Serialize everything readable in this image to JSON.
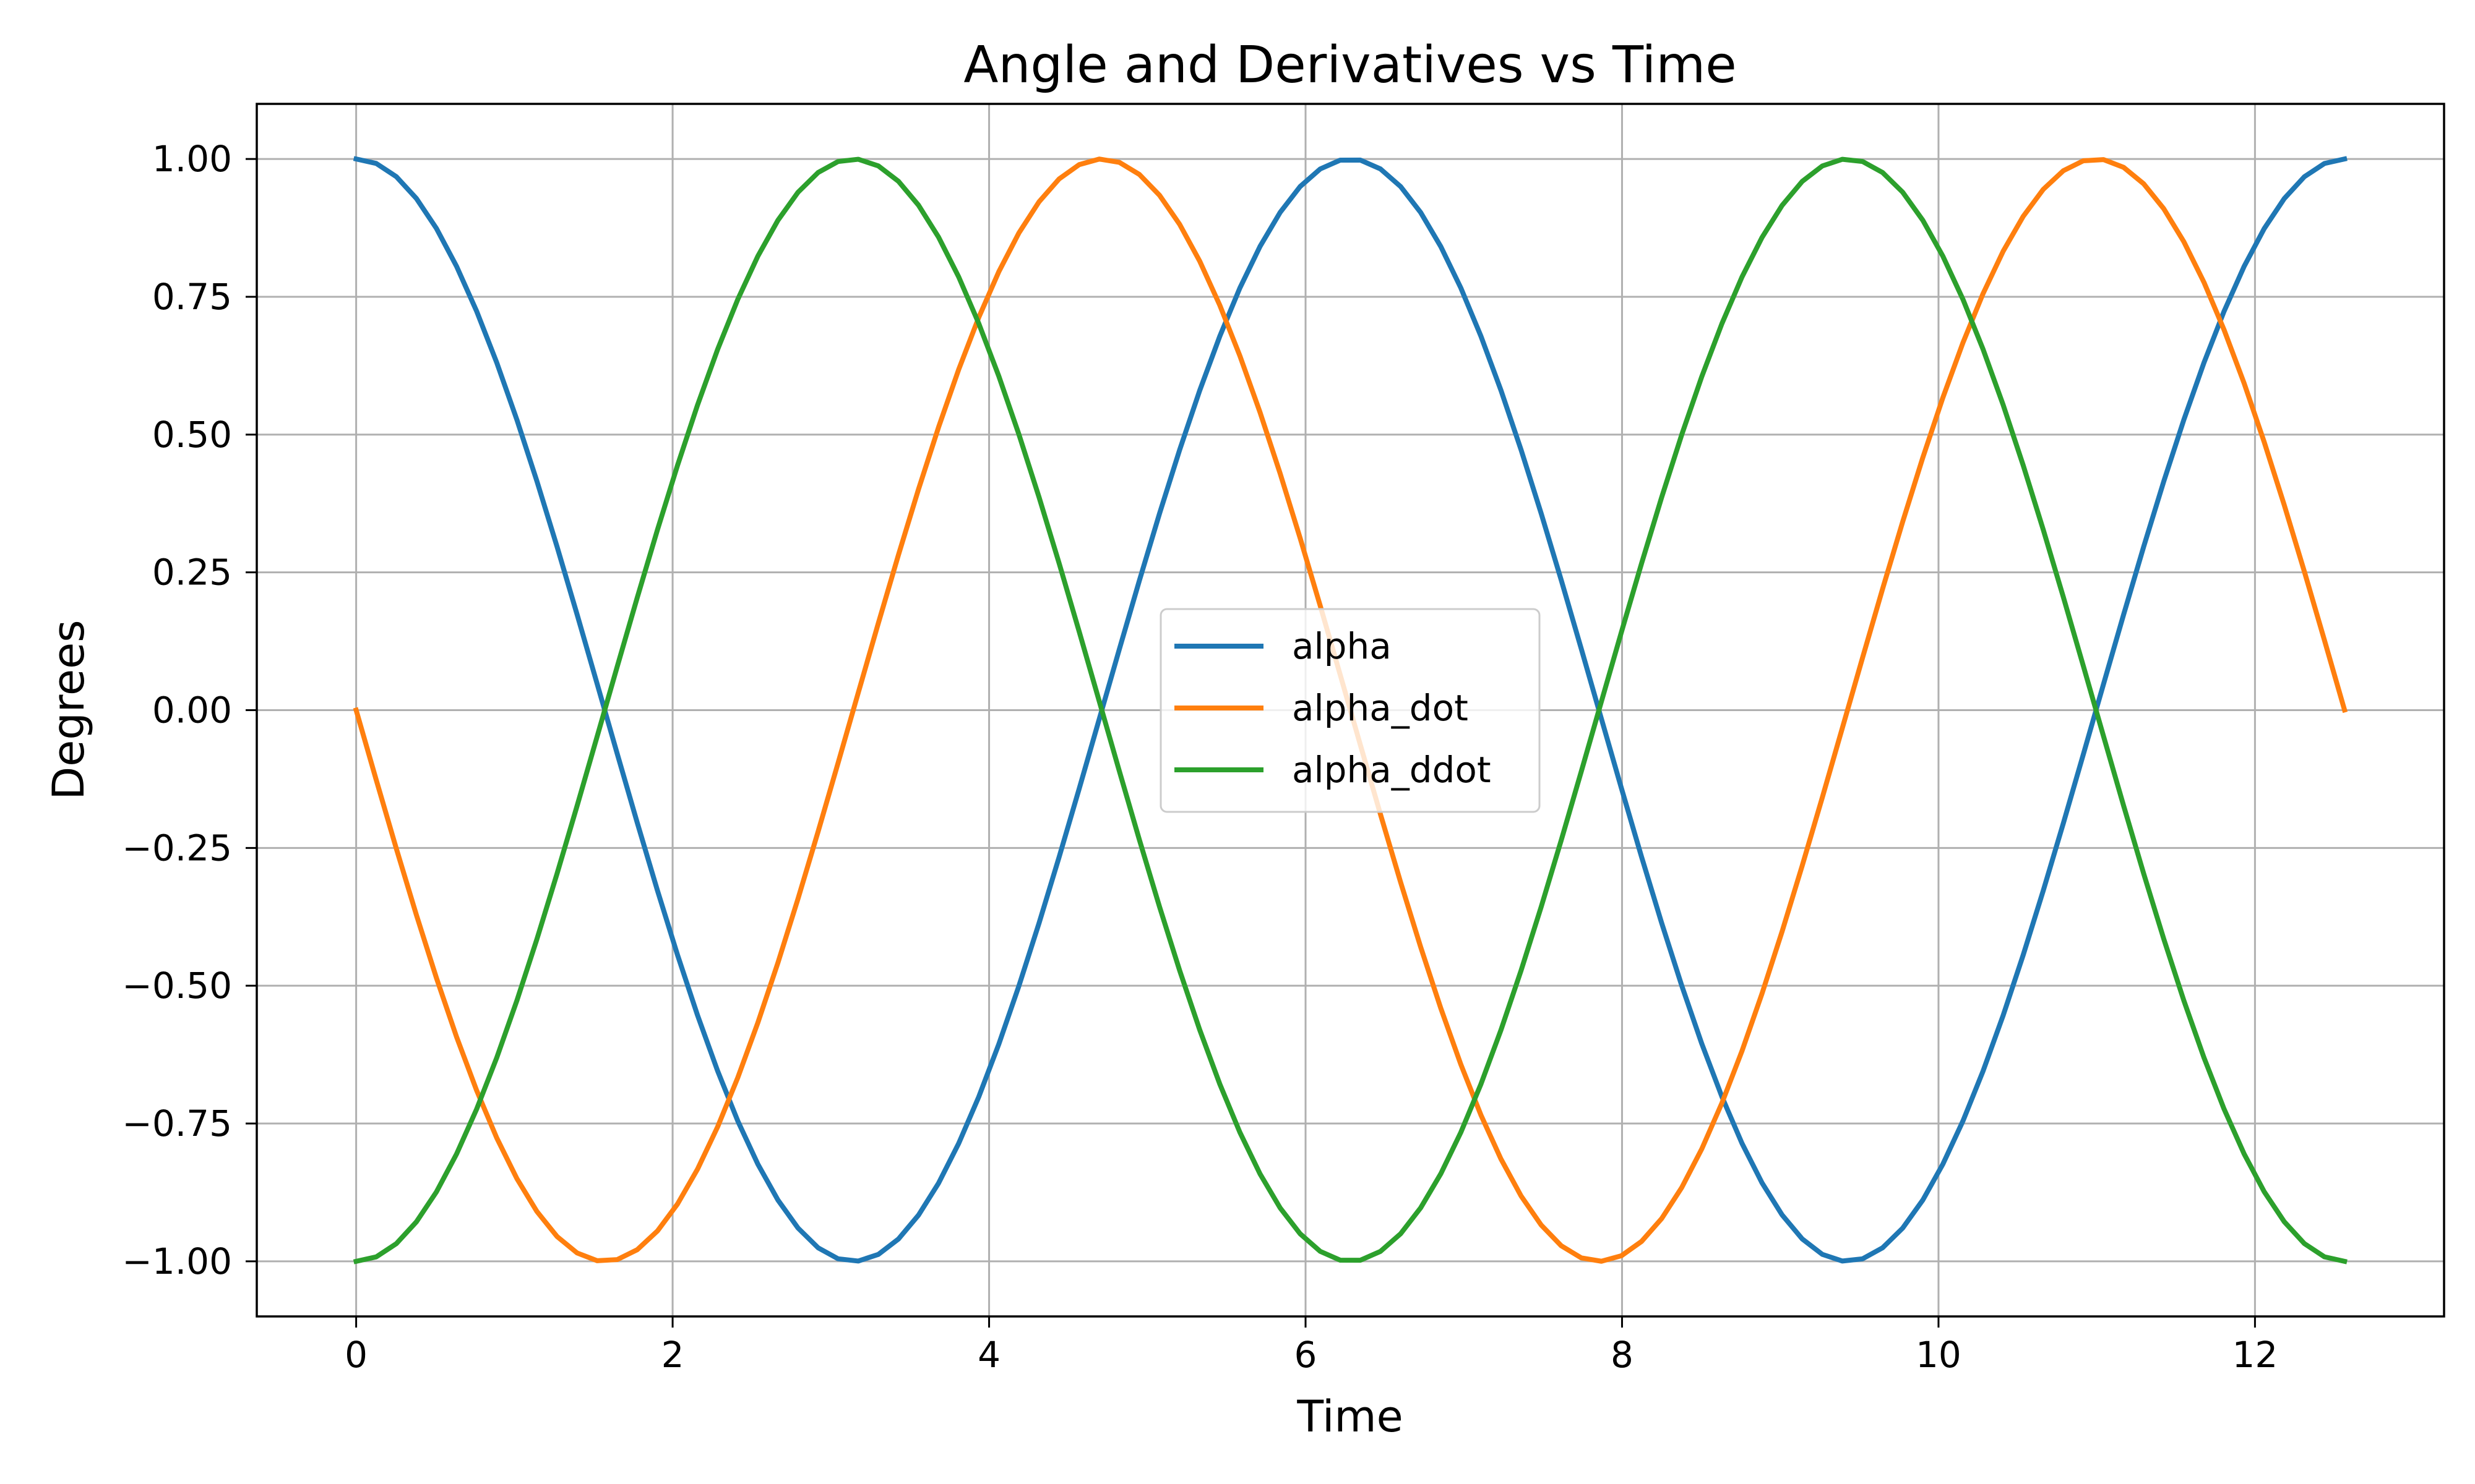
{
  "chart_data": {
    "type": "line",
    "title": "Angle and Derivatives vs Time",
    "xlabel": "Time",
    "ylabel": "Degrees",
    "xlim": [
      -0.628,
      13.195
    ],
    "ylim": [
      -1.1,
      1.1
    ],
    "x_range": [
      0,
      12.566
    ],
    "num_points": 100,
    "xticks": [
      0,
      2,
      4,
      6,
      8,
      10,
      12
    ],
    "xtick_labels": [
      "0",
      "2",
      "4",
      "6",
      "8",
      "10",
      "12"
    ],
    "yticks": [
      1.0,
      0.75,
      0.5,
      0.25,
      0.0,
      -0.25,
      -0.5,
      -0.75,
      -1.0
    ],
    "ytick_labels": [
      "1.00",
      "0.75",
      "0.50",
      "0.25",
      "0.00",
      "−0.25",
      "−0.50",
      "−0.75",
      "−1.00"
    ],
    "grid": true,
    "legend_position": "center",
    "series": [
      {
        "name": "alpha",
        "function": "cos(t)",
        "color": "#1f77b4"
      },
      {
        "name": "alpha_dot",
        "function": "-sin(t)",
        "color": "#ff7f0e"
      },
      {
        "name": "alpha_ddot",
        "function": "-cos(t)",
        "color": "#2ca02c"
      }
    ]
  }
}
